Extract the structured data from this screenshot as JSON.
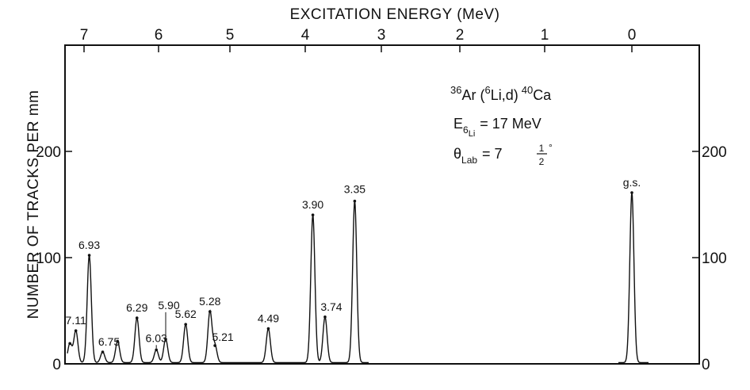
{
  "chart_data": {
    "type": "line",
    "title": "EXCITATION ENERGY (MeV)",
    "ylabel": "NUMBER OF TRACKS PER mm",
    "reaction": {
      "main": "Ar (",
      "target_mass": "36",
      "projectile_mass": "6",
      "projectile": "Li,d)",
      "product_mass": "40",
      "product": "Ca",
      "energy_label": "E",
      "energy_sub": "6",
      "energy_sub2": "Li",
      "energy_value": "= 17 MeV",
      "angle_label": "θ",
      "angle_sub": "Lab",
      "angle_value": "= 7",
      "angle_frac_num": "1",
      "angle_frac_den": "2",
      "angle_deg": "°"
    },
    "top_axis": {
      "ticks": [
        7,
        6,
        5,
        4,
        3,
        2,
        1,
        0
      ],
      "labels": [
        "7",
        "6",
        "5",
        "4",
        "3",
        "2",
        "1",
        "0"
      ]
    },
    "left_axis": {
      "ylim": [
        0,
        300
      ],
      "ticks": [
        0,
        100,
        200
      ],
      "labels": [
        "0",
        "100",
        "200"
      ]
    },
    "right_axis": {
      "ticks": [
        0,
        100,
        200
      ],
      "labels": [
        "0",
        "100",
        "200"
      ]
    },
    "peaks": [
      {
        "label": "",
        "energy": 7.19,
        "counts": 18
      },
      {
        "label": "7.11",
        "energy": 7.11,
        "counts": 30
      },
      {
        "label": "6.93",
        "energy": 6.93,
        "counts": 101
      },
      {
        "label": "6.75",
        "energy": 6.75,
        "counts": 10
      },
      {
        "label": "",
        "energy": 6.55,
        "counts": 20
      },
      {
        "label": "6.29",
        "energy": 6.29,
        "counts": 42
      },
      {
        "label": "6.03",
        "energy": 6.03,
        "counts": 12
      },
      {
        "label": "5.90",
        "energy": 5.9,
        "counts": 22
      },
      {
        "label": "5.62",
        "energy": 5.62,
        "counts": 36
      },
      {
        "label": "5.28",
        "energy": 5.28,
        "counts": 48
      },
      {
        "label": "5.21",
        "energy": 5.21,
        "counts": 16
      },
      {
        "label": "4.49",
        "energy": 4.49,
        "counts": 32
      },
      {
        "label": "3.90",
        "energy": 3.9,
        "counts": 139
      },
      {
        "label": "3.74",
        "energy": 3.74,
        "counts": 43
      },
      {
        "label": "3.35",
        "energy": 3.35,
        "counts": 152
      },
      {
        "label": "g.s.",
        "energy": 0.0,
        "counts": 160
      }
    ]
  }
}
